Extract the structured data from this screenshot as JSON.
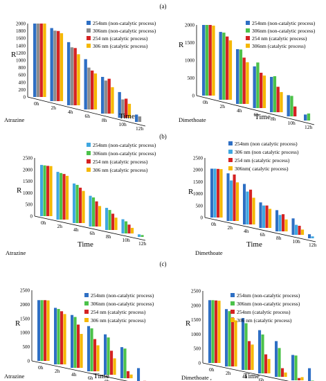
{
  "figure": {
    "panel_labels": [
      "(a)",
      "(b)",
      "(c)"
    ]
  },
  "colors": {
    "blue": "#2e6fc4",
    "green": "#4cc24a",
    "red": "#d52222",
    "yellow": "#f5b800",
    "gray": "#8c8c8c",
    "lightblue": "#3fa7e0"
  },
  "chart_data": [
    {
      "type": "bar",
      "panel": "(a)",
      "pesticide_label": "Atrazine",
      "xlabel": "Time",
      "ylabel": "R",
      "ylim": [
        0,
        2000
      ],
      "yticks": [
        0,
        200,
        400,
        600,
        800,
        1000,
        1200,
        1400,
        1600,
        1800,
        2000
      ],
      "categories": [
        "0h",
        "2h",
        "4h",
        "6h",
        "8h",
        "10h",
        "12h"
      ],
      "series": [
        {
          "name": "254nm (non-catalytic process)",
          "color_key": "blue",
          "values": [
            2000,
            1990,
            1720,
            1370,
            1000,
            700,
            200
          ]
        },
        {
          "name": "306nm (non-catalytic process)",
          "color_key": "gray",
          "values": [
            2000,
            1920,
            1580,
            1140,
            900,
            500,
            150
          ]
        },
        {
          "name": "254 nm (catalytic process)",
          "color_key": "red",
          "values": [
            2000,
            1910,
            1560,
            1060,
            950,
            520,
            0
          ]
        },
        {
          "name": "306 nm (catalytic process)",
          "color_key": "yellow",
          "values": [
            2000,
            1850,
            1390,
            980,
            720,
            380,
            0
          ]
        }
      ]
    },
    {
      "type": "bar",
      "panel": "(a)",
      "pesticide_label": "Dimethoate",
      "xlabel": "Time",
      "ylabel": "R",
      "ylim": [
        0,
        2000
      ],
      "yticks": [
        0,
        500,
        1000,
        1500,
        2000
      ],
      "categories": [
        "0h",
        "2h",
        "4h",
        "6h",
        "8h",
        "10h",
        "12h"
      ],
      "series": [
        {
          "name": "254nm (non-catalytic process)",
          "color_key": "blue",
          "values": [
            2000,
            1920,
            1550,
            1180,
            1000,
            600,
            170
          ]
        },
        {
          "name": "306nm (non-catalytic process)",
          "color_key": "green",
          "values": [
            2000,
            1900,
            1540,
            1290,
            1020,
            580,
            200
          ]
        },
        {
          "name": "254 nm (catalytic process)",
          "color_key": "red",
          "values": [
            2000,
            1790,
            1310,
            1000,
            720,
            280,
            0
          ]
        },
        {
          "name": "306nm (catalytic process)",
          "color_key": "yellow",
          "values": [
            1980,
            1680,
            1180,
            920,
            570,
            0,
            0
          ]
        }
      ]
    },
    {
      "type": "bar",
      "panel": "(b)",
      "pesticide_label": "Atrazine",
      "xlabel": "Time",
      "ylabel": "R",
      "ylim": [
        0,
        2500
      ],
      "yticks": [
        0,
        500,
        1000,
        1500,
        2000,
        2500
      ],
      "categories": [
        "0h",
        "2h",
        "4h",
        "6h",
        "8h",
        "10h",
        "12h"
      ],
      "series": [
        {
          "name": "254nm (non-catalytic process)",
          "color_key": "lightblue",
          "values": [
            2200,
            2050,
            1700,
            1320,
            950,
            610,
            110
          ]
        },
        {
          "name": "306nm (non-catalytic process)",
          "color_key": "green",
          "values": [
            2180,
            2000,
            1640,
            1250,
            860,
            520,
            80
          ]
        },
        {
          "name": "254 nm (catalytic process)",
          "color_key": "red",
          "values": [
            2160,
            1960,
            1520,
            1080,
            700,
            380,
            0
          ]
        },
        {
          "name": "306 nm (catalytic process)",
          "color_key": "yellow",
          "values": [
            2150,
            1880,
            1380,
            880,
            530,
            240,
            0
          ]
        }
      ]
    },
    {
      "type": "bar",
      "panel": "(b)",
      "pesticide_label": "Dimethoate",
      "xlabel": "Time",
      "ylabel": "R",
      "ylim": [
        0,
        2500
      ],
      "yticks": [
        0,
        500,
        1000,
        1500,
        2000,
        2500
      ],
      "categories": [
        "0h",
        "2h",
        "4h",
        "6h",
        "8h",
        "10h",
        "12h"
      ],
      "series": [
        {
          "name": "254nm (non catalytic process)",
          "color_key": "blue",
          "values": [
            2050,
            2000,
            1700,
            1070,
            890,
            690,
            170
          ]
        },
        {
          "name": "306 nm (non catalytic process)",
          "color_key": "lightblue",
          "values": [
            2050,
            1700,
            1380,
            940,
            690,
            420,
            80
          ]
        },
        {
          "name": "254 nm (catalytic process)",
          "color_key": "red",
          "values": [
            2040,
            1950,
            1460,
            940,
            720,
            380,
            0
          ]
        },
        {
          "name": "306nm( catalytic process)",
          "color_key": "yellow",
          "values": [
            2030,
            1620,
            1120,
            800,
            500,
            220,
            0
          ]
        }
      ]
    },
    {
      "type": "bar",
      "panel": "(c)",
      "pesticide_label": "Atrazine",
      "xlabel": "Time",
      "ylabel": "R",
      "ylim": [
        0,
        2500
      ],
      "yticks": [
        0,
        500,
        1000,
        1500,
        2000,
        2500
      ],
      "categories": [
        "0h",
        "2h",
        "4h",
        "6h",
        "8h",
        "10h",
        "12h"
      ],
      "series": [
        {
          "name": "254nm (non-catalytic process)",
          "color_key": "blue",
          "values": [
            2150,
            2000,
            1870,
            1600,
            1430,
            1100,
            480
          ]
        },
        {
          "name": "306nm (non-catalytic process)",
          "color_key": "green",
          "values": [
            2150,
            1960,
            1800,
            1520,
            1320,
            1050,
            0
          ]
        },
        {
          "name": "254 nm (catalytic process)",
          "color_key": "red",
          "values": [
            2150,
            1880,
            1530,
            1140,
            850,
            250,
            30
          ]
        },
        {
          "name": "306 nm (catalytic process)",
          "color_key": "yellow",
          "values": [
            2140,
            1780,
            1200,
            920,
            580,
            130,
            0
          ]
        }
      ]
    },
    {
      "type": "bar",
      "panel": "(c)",
      "pesticide_label": "Dimethoate ,",
      "xlabel": "Time",
      "ylabel": "R",
      "ylim": [
        0,
        2500
      ],
      "yticks": [
        0,
        500,
        1000,
        1500,
        2000,
        2500
      ],
      "categories": [
        "0h",
        "2h",
        "4h",
        "6h",
        "8h",
        "10h",
        "12h"
      ],
      "series": [
        {
          "name": "254nm (non-catalytic process)",
          "color_key": "blue",
          "values": [
            2180,
            1990,
            1800,
            1500,
            1240,
            880,
            540
          ]
        },
        {
          "name": "306nm (non-catalytic process)",
          "color_key": "green",
          "values": [
            2180,
            1920,
            1620,
            1350,
            1000,
            860,
            110
          ]
        },
        {
          "name": "254nm (catalytic process)",
          "color_key": "red",
          "values": [
            2170,
            1700,
            1000,
            660,
            300,
            80,
            0
          ]
        },
        {
          "name": "306 nm (catalytic process)",
          "color_key": "yellow",
          "values": [
            2160,
            1600,
            880,
            500,
            150,
            110,
            0
          ]
        }
      ]
    }
  ]
}
